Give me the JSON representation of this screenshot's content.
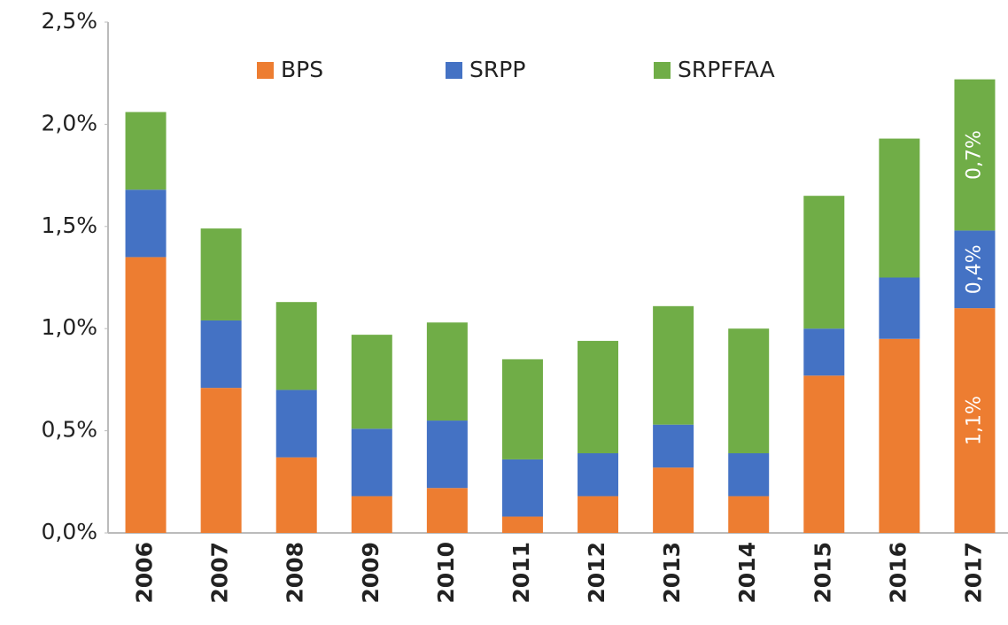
{
  "chart_data": {
    "type": "stacked_bar",
    "categories": [
      "2006",
      "2007",
      "2008",
      "2009",
      "2010",
      "2011",
      "2012",
      "2013",
      "2014",
      "2015",
      "2016",
      "2017"
    ],
    "series": [
      {
        "name": "BPS",
        "color": "#ed7d31",
        "values": [
          1.35,
          0.71,
          0.37,
          0.18,
          0.22,
          0.08,
          0.18,
          0.32,
          0.18,
          0.77,
          0.95,
          1.1
        ],
        "value_labels": [
          null,
          null,
          null,
          null,
          null,
          null,
          null,
          null,
          null,
          null,
          null,
          "1,1%"
        ]
      },
      {
        "name": "SRPP",
        "color": "#4472c4",
        "values": [
          0.33,
          0.33,
          0.33,
          0.33,
          0.33,
          0.28,
          0.21,
          0.21,
          0.21,
          0.23,
          0.3,
          0.38
        ],
        "value_labels": [
          null,
          null,
          null,
          null,
          null,
          null,
          null,
          null,
          null,
          null,
          null,
          "0,4%"
        ]
      },
      {
        "name": "SRPFFAA",
        "color": "#70ad47",
        "values": [
          0.38,
          0.45,
          0.43,
          0.46,
          0.48,
          0.49,
          0.55,
          0.58,
          0.61,
          0.65,
          0.68,
          0.74
        ],
        "value_labels": [
          null,
          null,
          null,
          null,
          null,
          null,
          null,
          null,
          null,
          null,
          null,
          "0,7%"
        ]
      }
    ],
    "ylim": [
      0,
      2.5
    ],
    "yticks": [
      {
        "value": 0,
        "label": "0,0%"
      },
      {
        "value": 0.5,
        "label": "0,5%"
      },
      {
        "value": 1,
        "label": "1,0%"
      },
      {
        "value": 1.5,
        "label": "1,5%"
      },
      {
        "value": 2,
        "label": "2,0%"
      },
      {
        "value": 2.5,
        "label": "2,5%"
      }
    ],
    "grid": false,
    "legend": "top"
  }
}
